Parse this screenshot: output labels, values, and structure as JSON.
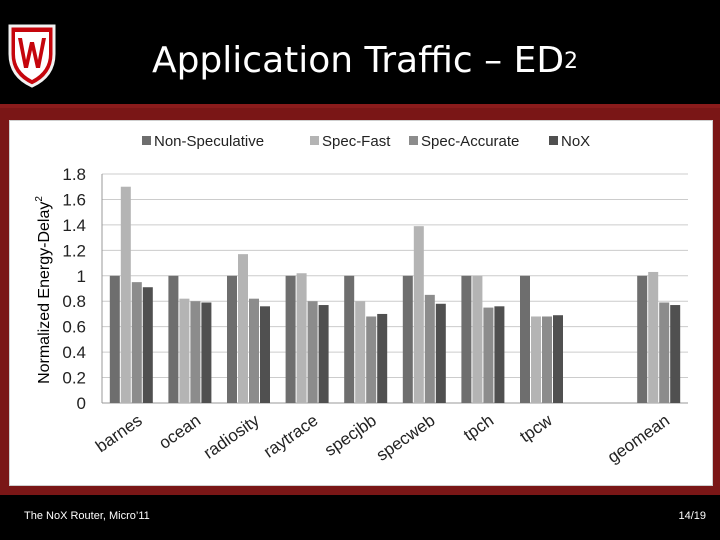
{
  "slide": {
    "title_main": "Application Traffic – ED",
    "title_sup": "2",
    "footer_left": "The NoX Router, Micro’11",
    "footer_right": "14/19",
    "logo_icon": "crest-w-icon"
  },
  "colors": {
    "accent_red": "#8a1b1b",
    "series": [
      "#6e6e6e",
      "#b4b4b4",
      "#8c8c8c",
      "#505050"
    ]
  },
  "chart_data": {
    "type": "bar",
    "categories": [
      "barnes",
      "ocean",
      "radiosity",
      "raytrace",
      "specjbb",
      "specweb",
      "tpch",
      "tpcw",
      "",
      "geomean"
    ],
    "series": [
      {
        "name": "Non-Speculative",
        "values": [
          1.0,
          1.0,
          1.0,
          1.0,
          1.0,
          1.0,
          1.0,
          1.0,
          null,
          1.0
        ]
      },
      {
        "name": "Spec-Fast",
        "values": [
          1.7,
          0.82,
          1.17,
          1.02,
          0.8,
          1.39,
          1.0,
          0.68,
          null,
          1.03
        ]
      },
      {
        "name": "Spec-Accurate",
        "values": [
          0.95,
          0.8,
          0.82,
          0.8,
          0.68,
          0.85,
          0.75,
          0.68,
          null,
          0.79
        ]
      },
      {
        "name": "NoX",
        "values": [
          0.91,
          0.79,
          0.76,
          0.77,
          0.7,
          0.78,
          0.76,
          0.69,
          null,
          0.77
        ]
      }
    ],
    "ylabel": "Normalized Energy-Delay",
    "ylabel_sup": "2",
    "yticks": [
      "0",
      "0.2",
      "0.4",
      "0.6",
      "0.8",
      "1",
      "1.2",
      "1.4",
      "1.6",
      "1.8"
    ],
    "ylim": [
      0,
      1.8
    ],
    "grid": true,
    "legend_position": "top"
  }
}
